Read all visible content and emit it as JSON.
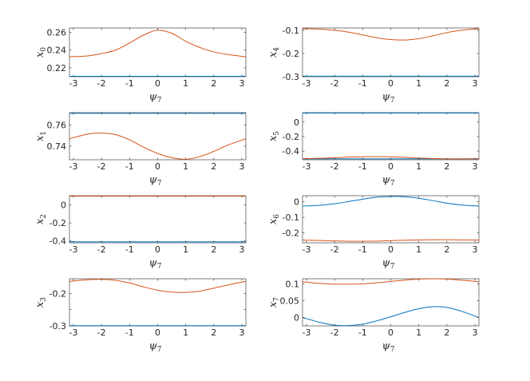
{
  "chart_data": [
    {
      "type": "line",
      "xlabel": "ψ",
      "xlabel_sub": "7",
      "ylabel": "x",
      "ylabel_sub": "0",
      "xlim": [
        -3.1416,
        3.1416
      ],
      "ylim": [
        0.21,
        0.265
      ],
      "xticks": [
        -3,
        -2,
        -1,
        0,
        1,
        2,
        3
      ],
      "yticks": [
        0.22,
        0.24,
        0.26
      ],
      "ytick_labels": [
        "0.22",
        "0.24",
        "0.26"
      ],
      "series": [
        {
          "color": "#0072BD",
          "x": [
            -3.1416,
            3.1416
          ],
          "y": [
            0.2105,
            0.2105
          ]
        },
        {
          "color": "#D95319",
          "x": [
            -3.1416,
            -2.5,
            -2.0,
            -1.5,
            -1.0,
            -0.5,
            0.0,
            0.5,
            1.0,
            1.5,
            2.0,
            2.5,
            3.1416
          ],
          "y": [
            0.2325,
            0.2335,
            0.236,
            0.24,
            0.248,
            0.257,
            0.2625,
            0.259,
            0.25,
            0.243,
            0.238,
            0.235,
            0.2325
          ]
        }
      ]
    },
    {
      "type": "line",
      "xlabel": "ψ",
      "xlabel_sub": "7",
      "ylabel": "x",
      "ylabel_sub": "4",
      "xlim": [
        -3.1416,
        3.1416
      ],
      "ylim": [
        -0.3,
        -0.09
      ],
      "xticks": [
        -3,
        -2,
        -1,
        0,
        1,
        2,
        3
      ],
      "yticks": [
        -0.3,
        -0.2,
        -0.1
      ],
      "ytick_labels": [
        "-0.3",
        "-0.2",
        "-0.1"
      ],
      "series": [
        {
          "color": "#0072BD",
          "x": [
            -3.1416,
            3.1416
          ],
          "y": [
            -0.298,
            -0.298
          ]
        },
        {
          "color": "#D95319",
          "x": [
            -3.1416,
            -2.5,
            -2.0,
            -1.5,
            -1.0,
            -0.5,
            0.0,
            0.5,
            1.0,
            1.5,
            2.0,
            2.5,
            3.1416
          ],
          "y": [
            -0.093,
            -0.095,
            -0.1,
            -0.108,
            -0.12,
            -0.132,
            -0.14,
            -0.142,
            -0.136,
            -0.124,
            -0.11,
            -0.1,
            -0.093
          ]
        }
      ]
    },
    {
      "type": "line",
      "xlabel": "ψ",
      "xlabel_sub": "7",
      "ylabel": "x",
      "ylabel_sub": "1",
      "xlim": [
        -3.1416,
        3.1416
      ],
      "ylim": [
        0.727,
        0.772
      ],
      "xticks": [
        -3,
        -2,
        -1,
        0,
        1,
        2,
        3
      ],
      "yticks": [
        0.74,
        0.76
      ],
      "ytick_labels": [
        "0.74",
        "0.76"
      ],
      "series": [
        {
          "color": "#0072BD",
          "x": [
            -3.1416,
            3.1416
          ],
          "y": [
            0.7713,
            0.7713
          ]
        },
        {
          "color": "#D95319",
          "x": [
            -3.1416,
            -2.5,
            -2.0,
            -1.5,
            -1.0,
            -0.5,
            0.0,
            0.5,
            1.0,
            1.5,
            2.0,
            2.5,
            3.1416
          ],
          "y": [
            0.747,
            0.7515,
            0.7525,
            0.751,
            0.746,
            0.739,
            0.733,
            0.729,
            0.7275,
            0.73,
            0.735,
            0.741,
            0.747
          ]
        }
      ]
    },
    {
      "type": "line",
      "xlabel": "ψ",
      "xlabel_sub": "7",
      "ylabel": "x",
      "ylabel_sub": "5",
      "xlim": [
        -3.1416,
        3.1416
      ],
      "ylim": [
        -0.52,
        0.13
      ],
      "xticks": [
        -3,
        -2,
        -1,
        0,
        1,
        2,
        3
      ],
      "yticks": [
        -0.4,
        -0.2,
        0
      ],
      "ytick_labels": [
        "-0.4",
        "-0.2",
        "0"
      ],
      "series": [
        {
          "color": "#0072BD",
          "x": [
            -3.1416,
            3.1416
          ],
          "y": [
            0.125,
            0.125
          ]
        },
        {
          "color": "#0072BD",
          "x": [
            -3.1416,
            3.1416
          ],
          "y": [
            -0.508,
            -0.508
          ]
        },
        {
          "color": "#D95319",
          "x": [
            -3.1416,
            -2.5,
            -2.0,
            -1.5,
            -1.0,
            -0.5,
            0.0,
            0.5,
            1.0,
            1.5,
            2.0,
            2.5,
            3.1416
          ],
          "y": [
            -0.505,
            -0.5,
            -0.492,
            -0.483,
            -0.478,
            -0.476,
            -0.479,
            -0.487,
            -0.496,
            -0.503,
            -0.507,
            -0.507,
            -0.505
          ]
        }
      ]
    },
    {
      "type": "line",
      "xlabel": "ψ",
      "xlabel_sub": "7",
      "ylabel": "x",
      "ylabel_sub": "2",
      "xlim": [
        -3.1416,
        3.1416
      ],
      "ylim": [
        -0.42,
        0.1
      ],
      "xticks": [
        -3,
        -2,
        -1,
        0,
        1,
        2,
        3
      ],
      "yticks": [
        -0.4,
        -0.2,
        0
      ],
      "ytick_labels": [
        "-0.4",
        "-0.2",
        "0"
      ],
      "series": [
        {
          "color": "#D95319",
          "x": [
            -3.1416,
            3.1416
          ],
          "y": [
            0.095,
            0.095
          ]
        },
        {
          "color": "#0072BD",
          "x": [
            -3.1416,
            3.1416
          ],
          "y": [
            -0.409,
            -0.409
          ]
        }
      ]
    },
    {
      "type": "line",
      "xlabel": "ψ",
      "xlabel_sub": "7",
      "ylabel": "x",
      "ylabel_sub": "6",
      "xlim": [
        -3.1416,
        3.1416
      ],
      "ylim": [
        -0.265,
        0.04
      ],
      "xticks": [
        -3,
        -2,
        -1,
        0,
        1,
        2,
        3
      ],
      "yticks": [
        -0.2,
        -0.1,
        0
      ],
      "ytick_labels": [
        "-0.2",
        "-0.1",
        "0"
      ],
      "series": [
        {
          "color": "#0072BD",
          "x": [
            -3.1416,
            -2.5,
            -2.0,
            -1.5,
            -1.0,
            -0.5,
            0.0,
            0.5,
            1.0,
            1.5,
            2.0,
            2.5,
            3.1416
          ],
          "y": [
            -0.027,
            -0.022,
            -0.012,
            0.002,
            0.017,
            0.03,
            0.035,
            0.033,
            0.023,
            0.008,
            -0.008,
            -0.02,
            -0.027
          ]
        },
        {
          "color": "#D95319",
          "x": [
            -3.1416,
            -2.5,
            -2.0,
            -1.5,
            -1.0,
            -0.5,
            0.0,
            0.5,
            1.0,
            1.5,
            2.0,
            2.5,
            3.1416
          ],
          "y": [
            -0.247,
            -0.25,
            -0.253,
            -0.255,
            -0.255,
            -0.254,
            -0.251,
            -0.248,
            -0.246,
            -0.245,
            -0.245,
            -0.246,
            -0.247
          ]
        }
      ]
    },
    {
      "type": "line",
      "xlabel": "ψ",
      "xlabel_sub": "7",
      "ylabel": "x",
      "ylabel_sub": "3",
      "xlim": [
        -3.1416,
        3.1416
      ],
      "ylim": [
        -0.3,
        -0.155
      ],
      "xticks": [
        -3,
        -2,
        -1,
        0,
        1,
        2,
        3
      ],
      "yticks": [
        -0.3,
        -0.25,
        -0.2
      ],
      "ytick_labels": [
        "-0.3",
        "",
        "-0.2"
      ],
      "series": [
        {
          "color": "#0072BD",
          "x": [
            -3.1416,
            3.1416
          ],
          "y": [
            -0.2995,
            -0.2995
          ]
        },
        {
          "color": "#D95319",
          "x": [
            -3.1416,
            -2.5,
            -2.0,
            -1.5,
            -1.0,
            -0.5,
            0.0,
            0.5,
            1.0,
            1.5,
            2.0,
            2.5,
            3.1416
          ],
          "y": [
            -0.163,
            -0.158,
            -0.157,
            -0.16,
            -0.168,
            -0.18,
            -0.19,
            -0.196,
            -0.197,
            -0.193,
            -0.184,
            -0.174,
            -0.163
          ]
        }
      ]
    },
    {
      "type": "line",
      "xlabel": "ψ",
      "xlabel_sub": "7",
      "ylabel": "x",
      "ylabel_sub": "7",
      "xlim": [
        -3.1416,
        3.1416
      ],
      "ylim": [
        -0.025,
        0.115
      ],
      "xticks": [
        -3,
        -2,
        -1,
        0,
        1,
        2,
        3
      ],
      "yticks": [
        0,
        0.05,
        0.1
      ],
      "ytick_labels": [
        "0",
        "0.05",
        "0.1"
      ],
      "series": [
        {
          "color": "#0072BD",
          "x": [
            -3.1416,
            -2.5,
            -2.0,
            -1.5,
            -1.0,
            -0.5,
            0.0,
            0.5,
            1.0,
            1.5,
            2.0,
            2.5,
            3.1416
          ],
          "y": [
            0.0,
            -0.015,
            -0.023,
            -0.024,
            -0.02,
            -0.01,
            0.002,
            0.015,
            0.026,
            0.032,
            0.03,
            0.019,
            0.0
          ]
        },
        {
          "color": "#D95319",
          "x": [
            -3.1416,
            -2.5,
            -2.0,
            -1.5,
            -1.0,
            -0.5,
            0.0,
            0.5,
            1.0,
            1.5,
            2.0,
            2.5,
            3.1416
          ],
          "y": [
            0.106,
            0.101,
            0.099,
            0.099,
            0.1,
            0.103,
            0.107,
            0.111,
            0.114,
            0.115,
            0.114,
            0.111,
            0.106
          ]
        }
      ]
    }
  ]
}
